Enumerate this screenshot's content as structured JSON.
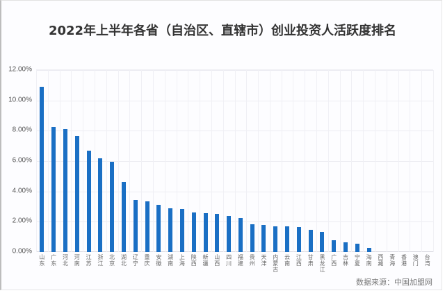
{
  "title": "2022年上半年各省（自治区、直辖市）创业投资人活跃度排名",
  "source": "数据来源：中国加盟网",
  "colors": {
    "bar": "#1a6fc4",
    "grid": "#ececf2",
    "title": "#333333"
  },
  "y_ticks": [
    "0.00%",
    "2.00%",
    "4.00%",
    "6.00%",
    "8.00%",
    "10.00%",
    "12.00%"
  ],
  "chart_data": {
    "type": "bar",
    "title": "2022年上半年各省（自治区、直辖市）创业投资人活跃度排名",
    "xlabel": "",
    "ylabel": "",
    "ylim": [
      0,
      12
    ],
    "y_tick_labels": [
      "0.00%",
      "2.00%",
      "4.00%",
      "6.00%",
      "8.00%",
      "10.00%",
      "12.00%"
    ],
    "grid": true,
    "legend": "none",
    "categories": [
      "山东",
      "广东",
      "河北",
      "河南",
      "江苏",
      "浙江",
      "北京",
      "湖北",
      "辽宁",
      "重庆",
      "安徽",
      "湖南",
      "上海",
      "陕西",
      "新疆",
      "山西",
      "四川",
      "福建",
      "贵州",
      "天津",
      "内蒙古",
      "云南",
      "江西",
      "甘肃",
      "黑龙江",
      "广西",
      "吉林",
      "宁夏",
      "海南",
      "西藏",
      "青海",
      "香港",
      "澳门",
      "台湾"
    ],
    "values": [
      10.89,
      8.23,
      8.11,
      7.65,
      6.7,
      6.17,
      5.96,
      4.64,
      3.42,
      3.33,
      3.11,
      2.9,
      2.83,
      2.63,
      2.58,
      2.5,
      2.37,
      2.23,
      1.83,
      1.8,
      1.69,
      1.69,
      1.63,
      1.48,
      1.34,
      0.78,
      0.66,
      0.55,
      0.27,
      0,
      0,
      0,
      0,
      0
    ],
    "unit": "%",
    "source": "数据来源：中国加盟网"
  }
}
